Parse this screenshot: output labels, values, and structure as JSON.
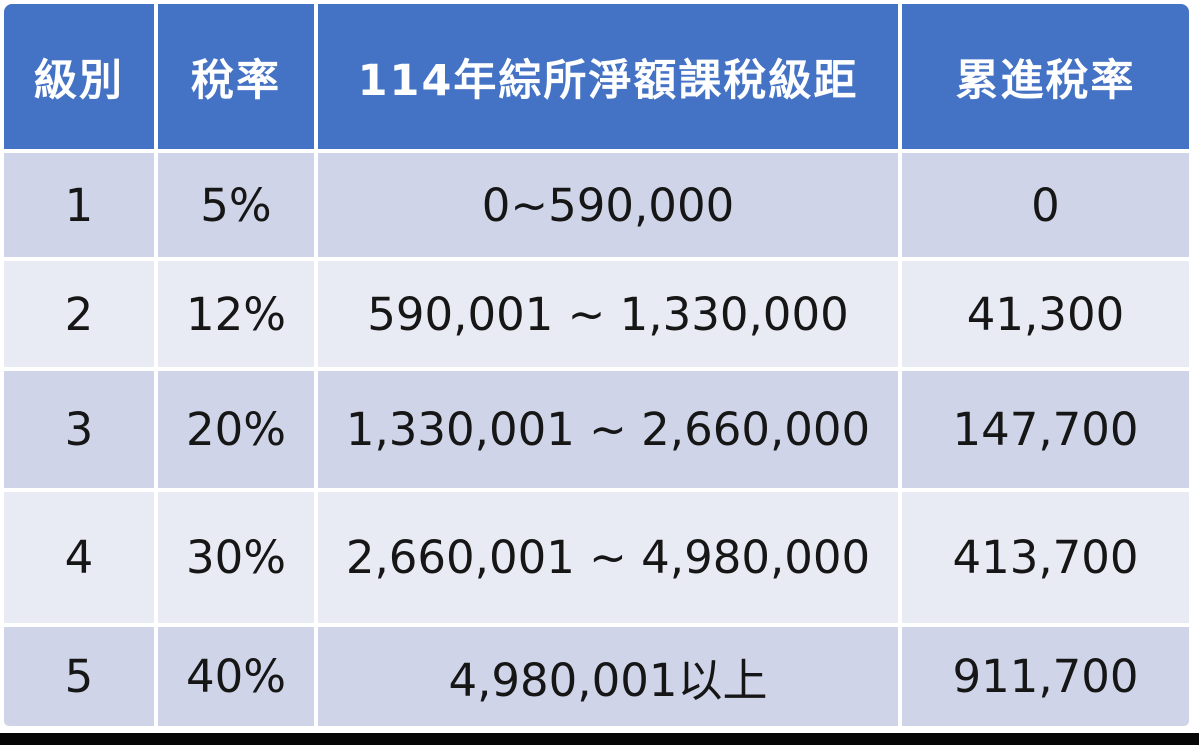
{
  "table": {
    "columns": [
      {
        "key": "level",
        "label": "級別"
      },
      {
        "key": "rate",
        "label": "稅率"
      },
      {
        "key": "bracket",
        "label": "114年綜所淨額課稅級距"
      },
      {
        "key": "progressive",
        "label": "累進稅率"
      }
    ],
    "rows": [
      {
        "level": "1",
        "rate": "5%",
        "bracket": "0~590,000",
        "progressive": "0"
      },
      {
        "level": "2",
        "rate": "12%",
        "bracket": "590,001 ~ 1,330,000",
        "progressive": "41,300"
      },
      {
        "level": "3",
        "rate": "20%",
        "bracket": "1,330,001 ~ 2,660,000",
        "progressive": "147,700"
      },
      {
        "level": "4",
        "rate": "30%",
        "bracket": "2,660,001 ~ 4,980,000",
        "progressive": "413,700"
      },
      {
        "level": "5",
        "rate": "40%",
        "bracket": "4,980,001以上",
        "progressive": "911,700"
      }
    ],
    "colors": {
      "header_bg": "#4472C4",
      "header_text": "#FFFFFF",
      "row_band_dark": "#CFD4E8",
      "row_band_light": "#E9EBF4",
      "body_text": "#161616",
      "cell_gap": "#FFFFFF",
      "bottom_bar": "#060606"
    }
  },
  "chart_data": {
    "type": "table",
    "title": "114年綜所淨額課稅級距",
    "columns": [
      "級別",
      "稅率",
      "114年綜所淨額課稅級距",
      "累進稅率"
    ],
    "rows": [
      [
        "1",
        "5%",
        "0~590,000",
        "0"
      ],
      [
        "2",
        "12%",
        "590,001 ~ 1,330,000",
        "41,300"
      ],
      [
        "3",
        "20%",
        "1,330,001 ~ 2,660,000",
        "147,700"
      ],
      [
        "4",
        "30%",
        "2,660,001 ~ 4,980,000",
        "413,700"
      ],
      [
        "5",
        "40%",
        "4,980,001以上",
        "911,700"
      ]
    ],
    "notes": "Taiwan individual income tax brackets for ROC year 114; banded-row table, blue header"
  }
}
